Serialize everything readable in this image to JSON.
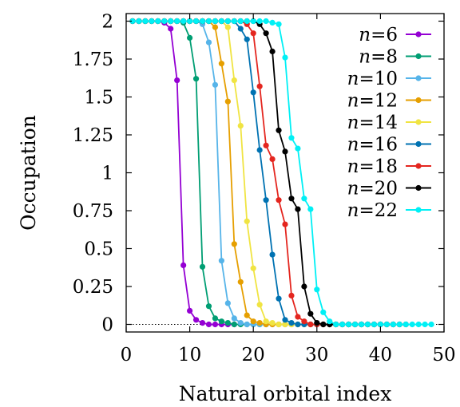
{
  "chart_data": {
    "type": "line",
    "title": "",
    "xlabel": "Natural orbital index",
    "ylabel": "Occupation",
    "xlim": [
      0,
      50
    ],
    "ylim": [
      -0.05,
      2.05
    ],
    "xticks": [
      0,
      10,
      20,
      30,
      40,
      50
    ],
    "yticks": [
      0,
      0.25,
      0.5,
      0.75,
      1,
      1.25,
      1.5,
      1.75,
      2
    ],
    "ytick_labels": [
      "0",
      "0.25",
      "0.5",
      "0.75",
      "1",
      "1.25",
      "1.5",
      "1.75",
      "2"
    ],
    "zero_reference_line": {
      "y": 0,
      "style": "dotted"
    },
    "grid": false,
    "legend_position": "top-right",
    "series": [
      {
        "name": "n=6",
        "color": "#9400d3",
        "x": [
          1,
          2,
          3,
          4,
          5,
          6,
          7,
          8,
          9,
          10,
          11,
          12,
          13,
          14,
          15,
          16,
          17
        ],
        "y": [
          2,
          2,
          2,
          2,
          2,
          1.99,
          1.95,
          1.61,
          0.39,
          0.09,
          0.03,
          0.01,
          0,
          0,
          0,
          0,
          0
        ]
      },
      {
        "name": "n=8",
        "color": "#009e73",
        "x": [
          1,
          2,
          3,
          4,
          5,
          6,
          7,
          8,
          9,
          10,
          11,
          12,
          13,
          14,
          15,
          16,
          17,
          18,
          19,
          20,
          21,
          22
        ],
        "y": [
          2,
          2,
          2,
          2,
          2,
          2,
          2,
          2,
          1.99,
          1.89,
          1.62,
          0.38,
          0.12,
          0.04,
          0.02,
          0.01,
          0,
          0,
          0,
          0,
          0,
          0
        ]
      },
      {
        "name": "n=10",
        "color": "#56b4e9",
        "x": [
          1,
          2,
          3,
          4,
          5,
          6,
          7,
          8,
          9,
          10,
          11,
          12,
          13,
          14,
          15,
          16,
          17,
          18,
          19,
          20,
          21,
          22,
          23,
          24,
          25,
          26,
          27
        ],
        "y": [
          2,
          2,
          2,
          2,
          2,
          2,
          2,
          2,
          2,
          2,
          2,
          1.98,
          1.86,
          1.58,
          0.42,
          0.14,
          0.04,
          0.01,
          0,
          0,
          0,
          0,
          0,
          0,
          0,
          0,
          0
        ]
      },
      {
        "name": "n=12",
        "color": "#e69f00",
        "x": [
          1,
          2,
          3,
          4,
          5,
          6,
          7,
          8,
          9,
          10,
          11,
          12,
          13,
          14,
          15,
          16,
          17,
          18,
          19,
          20,
          21,
          22,
          23,
          24,
          25,
          26,
          27,
          28,
          29,
          30,
          31,
          32
        ],
        "y": [
          2,
          2,
          2,
          2,
          2,
          2,
          2,
          2,
          2,
          2,
          2,
          2,
          2,
          1.96,
          1.72,
          1.47,
          0.53,
          0.28,
          0.06,
          0.02,
          0.01,
          0,
          0,
          0,
          0,
          0,
          0,
          0,
          0,
          0,
          0,
          0
        ]
      },
      {
        "name": "n=14",
        "color": "#f0e442",
        "x": [
          1,
          2,
          3,
          4,
          5,
          6,
          7,
          8,
          9,
          10,
          11,
          12,
          13,
          14,
          15,
          16,
          17,
          18,
          19,
          20,
          21,
          22,
          23,
          24,
          25,
          26,
          27,
          28,
          29,
          30,
          31,
          32,
          33,
          34,
          35,
          36,
          37
        ],
        "y": [
          2,
          2,
          2,
          2,
          2,
          2,
          2,
          2,
          2,
          2,
          2,
          2,
          2,
          2,
          2,
          1.96,
          1.61,
          1.31,
          0.68,
          0.37,
          0.13,
          0.02,
          0.01,
          0,
          0,
          0,
          0,
          0,
          0,
          0,
          0,
          0,
          0,
          0,
          0,
          0,
          0
        ]
      },
      {
        "name": "n=16",
        "color": "#0072b2",
        "x": [
          1,
          2,
          3,
          4,
          5,
          6,
          7,
          8,
          9,
          10,
          11,
          12,
          13,
          14,
          15,
          16,
          17,
          18,
          19,
          20,
          21,
          22,
          23,
          24,
          25,
          26,
          27,
          28,
          29,
          30,
          31,
          32,
          33,
          34,
          35,
          36,
          37,
          38,
          39,
          40,
          41,
          42
        ],
        "y": [
          2,
          2,
          2,
          2,
          2,
          2,
          2,
          2,
          2,
          2,
          2,
          2,
          2,
          2,
          2,
          2,
          2,
          1.95,
          1.88,
          1.53,
          1.15,
          0.82,
          0.46,
          0.17,
          0.03,
          0.01,
          0,
          0,
          0,
          0,
          0,
          0,
          0,
          0,
          0,
          0,
          0,
          0,
          0,
          0,
          0,
          0
        ]
      },
      {
        "name": "n=18",
        "color": "#e4261f",
        "x": [
          1,
          2,
          3,
          4,
          5,
          6,
          7,
          8,
          9,
          10,
          11,
          12,
          13,
          14,
          15,
          16,
          17,
          18,
          19,
          20,
          21,
          22,
          23,
          24,
          25,
          26,
          27,
          28,
          29,
          30,
          31,
          32,
          33,
          34,
          35,
          36,
          37,
          38,
          39,
          40,
          41,
          42,
          43
        ],
        "y": [
          2,
          2,
          2,
          2,
          2,
          2,
          2,
          2,
          2,
          2,
          2,
          2,
          2,
          2,
          2,
          2,
          2,
          2,
          1.98,
          1.92,
          1.57,
          1.18,
          1.09,
          0.82,
          0.66,
          0.19,
          0.05,
          0.02,
          0,
          0,
          0,
          0,
          0,
          0,
          0,
          0,
          0,
          0,
          0,
          0,
          0,
          0,
          0
        ]
      },
      {
        "name": "n=20",
        "color": "#000000",
        "x": [
          1,
          2,
          3,
          4,
          5,
          6,
          7,
          8,
          9,
          10,
          11,
          12,
          13,
          14,
          15,
          16,
          17,
          18,
          19,
          20,
          21,
          22,
          23,
          24,
          25,
          26,
          27,
          28,
          29,
          30,
          31,
          32,
          33,
          34,
          35,
          36,
          37,
          38,
          39,
          40,
          41,
          42,
          43,
          44
        ],
        "y": [
          2,
          2,
          2,
          2,
          2,
          2,
          2,
          2,
          2,
          2,
          2,
          2,
          2,
          2,
          2,
          2,
          2,
          2,
          2,
          2,
          1.98,
          1.92,
          1.8,
          1.28,
          1.14,
          0.83,
          0.76,
          0.25,
          0.07,
          0.01,
          0,
          0,
          0,
          0,
          0,
          0,
          0,
          0,
          0,
          0,
          0,
          0,
          0,
          0
        ]
      },
      {
        "name": "n=22",
        "color": "#00f0f5",
        "x": [
          1,
          2,
          3,
          4,
          5,
          6,
          7,
          8,
          9,
          10,
          11,
          12,
          13,
          14,
          15,
          16,
          17,
          18,
          19,
          20,
          21,
          22,
          23,
          24,
          25,
          26,
          27,
          28,
          29,
          30,
          31,
          32,
          33,
          34,
          35,
          36,
          37,
          38,
          39,
          40,
          41,
          42,
          43,
          44,
          45,
          46,
          47,
          48
        ],
        "y": [
          2,
          2,
          2,
          2,
          2,
          2,
          2,
          2,
          2,
          2,
          2,
          2,
          2,
          2,
          2,
          2,
          2,
          2,
          2,
          2,
          2,
          2,
          1.99,
          1.98,
          1.76,
          1.23,
          1.16,
          0.83,
          0.76,
          0.23,
          0.08,
          0.02,
          0,
          0,
          0,
          0,
          0,
          0,
          0,
          0,
          0,
          0,
          0,
          0,
          0,
          0,
          0,
          0
        ]
      }
    ]
  }
}
